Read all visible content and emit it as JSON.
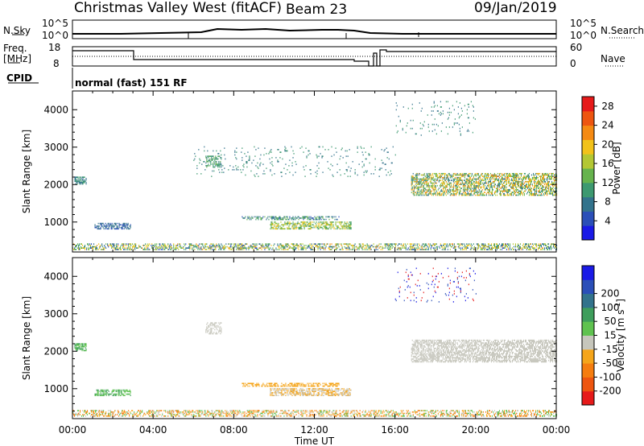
{
  "header": {
    "station": "Christmas Valley West (fitACF)",
    "beam": "Beam 23",
    "date": "09/Jan/2019"
  },
  "status_panel": {
    "nsky_label": "N.Sky",
    "nsearch_label": "N.Search",
    "noise_ticks": [
      "10^5",
      "10^0"
    ],
    "freq_label_1": "Freq.",
    "freq_label_2": "[MHz]",
    "freq_ticks": [
      "18",
      "8"
    ],
    "nave_label": "Nave",
    "nave_ticks": [
      "60",
      "0"
    ],
    "cpid_label": "CPID",
    "cpid_text": "normal (fast) 151 RF"
  },
  "x_axis": {
    "label": "Time UT",
    "ticks": [
      "00:00",
      "04:00",
      "08:00",
      "12:00",
      "16:00",
      "20:00",
      "00:00"
    ]
  },
  "colors": {
    "power": [
      "#1a1ae6",
      "#2b4fb8",
      "#33738c",
      "#3d9970",
      "#66b34d",
      "#b3c733",
      "#f2c21a",
      "#f58a12",
      "#ed5510",
      "#e61a1a"
    ],
    "velocity": [
      "#e61a1a",
      "#ed5510",
      "#f57d0f",
      "#f5a51a",
      "#c6c6bc",
      "#5fc24f",
      "#3f9e5c",
      "#33738c",
      "#2b4fb8",
      "#1a1ae6"
    ]
  },
  "chart_data": [
    {
      "type": "heatmap",
      "panel": "power",
      "ylabel": "Slant Range [km]",
      "x_range_hours": [
        0,
        24
      ],
      "ylim": [
        200,
        4500
      ],
      "y_ticks": [
        "1000",
        "2000",
        "3000",
        "4000"
      ],
      "colorbar": {
        "label": "Power [dB]",
        "ticks": [
          "4",
          "8",
          "12",
          "16",
          "20",
          "24",
          "28"
        ],
        "range": [
          0,
          30
        ]
      },
      "regions": [
        {
          "t0": 0.0,
          "t1": 24.0,
          "r0": 250,
          "r1": 400,
          "v0": 4,
          "v1": 22,
          "density": 0.45
        },
        {
          "t0": 0.1,
          "t1": 0.7,
          "r0": 2000,
          "r1": 2200,
          "v0": 6,
          "v1": 12,
          "density": 0.6
        },
        {
          "t0": 1.1,
          "t1": 2.9,
          "r0": 800,
          "r1": 950,
          "v0": 4,
          "v1": 9,
          "density": 0.55
        },
        {
          "t0": 6.6,
          "t1": 7.4,
          "r0": 2450,
          "r1": 2750,
          "v0": 8,
          "v1": 14,
          "density": 0.45
        },
        {
          "t0": 8.4,
          "t1": 13.2,
          "r0": 1050,
          "r1": 1150,
          "v0": 5,
          "v1": 14,
          "density": 0.45
        },
        {
          "t0": 9.8,
          "t1": 13.8,
          "r0": 800,
          "r1": 1000,
          "v0": 10,
          "v1": 20,
          "density": 0.5
        },
        {
          "t0": 16.8,
          "t1": 24.0,
          "r0": 1700,
          "r1": 2300,
          "v0": 6,
          "v1": 24,
          "density": 0.55
        },
        {
          "t0": 6.0,
          "t1": 16.0,
          "r0": 2200,
          "r1": 3000,
          "v0": 6,
          "v1": 12,
          "density": 0.05
        },
        {
          "t0": 16.0,
          "t1": 20.0,
          "r0": 3300,
          "r1": 4200,
          "v0": 6,
          "v1": 12,
          "density": 0.04
        }
      ]
    },
    {
      "type": "heatmap",
      "panel": "velocity",
      "ylabel": "Slant Range [km]",
      "x_range_hours": [
        0,
        24
      ],
      "ylim": [
        200,
        4500
      ],
      "y_ticks": [
        "1000",
        "2000",
        "3000",
        "4000"
      ],
      "colorbar": {
        "label": "Velocity [m s^-1]",
        "ticks": [
          "-200",
          "-100",
          "-50",
          "-15",
          "15",
          "50",
          "100",
          "200"
        ]
      },
      "regions": [
        {
          "t0": 0.0,
          "t1": 24.0,
          "r0": 250,
          "r1": 400,
          "classes": [
            2,
            3,
            4,
            5
          ],
          "density": 0.45
        },
        {
          "t0": 0.1,
          "t1": 0.7,
          "r0": 2000,
          "r1": 2200,
          "classes": [
            5,
            6
          ],
          "density": 0.6
        },
        {
          "t0": 1.1,
          "t1": 2.9,
          "r0": 800,
          "r1": 950,
          "classes": [
            5,
            6
          ],
          "density": 0.55
        },
        {
          "t0": 6.6,
          "t1": 7.4,
          "r0": 2450,
          "r1": 2750,
          "classes": [
            4
          ],
          "density": 0.45
        },
        {
          "t0": 8.4,
          "t1": 13.2,
          "r0": 1050,
          "r1": 1150,
          "classes": [
            3
          ],
          "density": 0.5
        },
        {
          "t0": 9.8,
          "t1": 13.8,
          "r0": 800,
          "r1": 1000,
          "classes": [
            3,
            4
          ],
          "density": 0.55
        },
        {
          "t0": 16.8,
          "t1": 24.0,
          "r0": 1700,
          "r1": 2300,
          "classes": [
            4
          ],
          "density": 0.6
        },
        {
          "t0": 16.0,
          "t1": 20.0,
          "r0": 3300,
          "r1": 4200,
          "classes": [
            0,
            8,
            9
          ],
          "density": 0.04
        }
      ]
    }
  ]
}
